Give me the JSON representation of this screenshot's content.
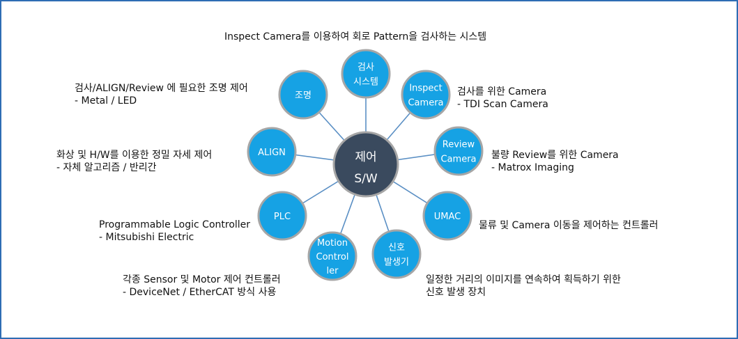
{
  "center": {
    "line1": "제어",
    "line2": "S/W"
  },
  "nodes": [
    {
      "id": "inspection-system",
      "lines": [
        "검사",
        "시스템"
      ]
    },
    {
      "id": "inspect-camera",
      "lines": [
        "Inspect",
        "Camera"
      ]
    },
    {
      "id": "review-camera",
      "lines": [
        "Review",
        "Camera"
      ]
    },
    {
      "id": "umac",
      "lines": [
        "UMAC"
      ]
    },
    {
      "id": "signal-generator",
      "lines": [
        "신호",
        "발생기"
      ]
    },
    {
      "id": "motion-controller",
      "lines": [
        "Motion",
        "Control",
        "ler"
      ]
    },
    {
      "id": "plc",
      "lines": [
        "PLC"
      ]
    },
    {
      "id": "align",
      "lines": [
        "ALIGN"
      ]
    },
    {
      "id": "lighting",
      "lines": [
        "조명"
      ]
    }
  ],
  "descriptions": {
    "inspection_system": [
      "Inspect Camera를 이용하여 회로 Pattern을 검사하는 시스템"
    ],
    "inspect_camera": [
      "검사를 위한 Camera",
      "- TDI Scan Camera"
    ],
    "review_camera": [
      "불량 Review를 위한 Camera",
      "- Matrox Imaging"
    ],
    "umac": [
      "물류 및 Camera 이동을 제어하는 컨트롤러"
    ],
    "signal_generator": [
      "일정한 거리의 이미지를 연속하여 획득하기 위한",
      "신호 발생 장치"
    ],
    "motion_controller": [
      "각종 Sensor 및 Motor 제어 컨트롤러",
      "- DeviceNet / EtherCAT 방식 사용"
    ],
    "plc": [
      "Programmable Logic Controller",
      "- Mitsubishi Electric"
    ],
    "align": [
      "화상 및 H/W를 이용한 정밀 자세 제어",
      "- 자체 알고리즘 / 반리간"
    ],
    "lighting": [
      "검사/ALIGN/Review 에 필요한 조명 제어",
      "- Metal / LED"
    ]
  },
  "colors": {
    "center_fill": "#3a4a5e",
    "node_fill": "#16a2e4",
    "node_stroke": "#a6a6a6",
    "connector": "#5a8fc4",
    "border": "#2e6db4"
  }
}
